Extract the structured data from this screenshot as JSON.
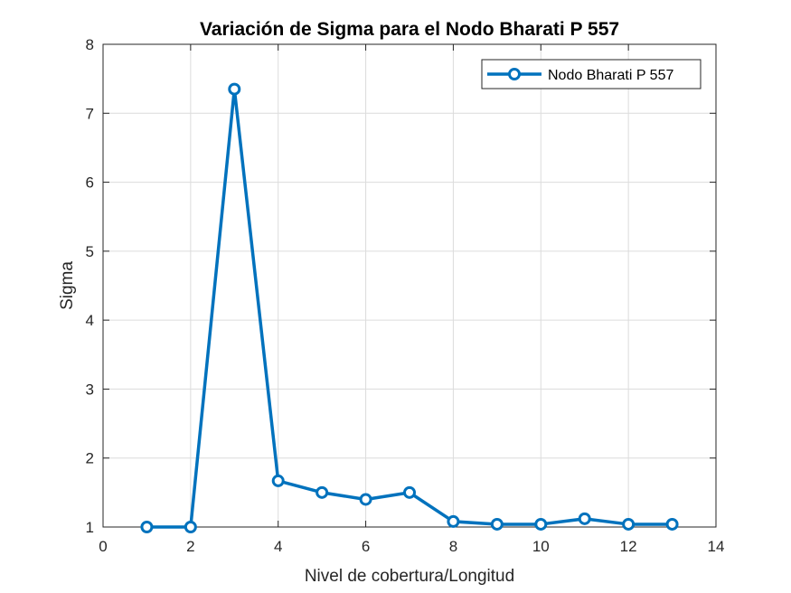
{
  "chart_data": {
    "type": "line",
    "title": "Variación de Sigma para el Nodo Bharati P 557",
    "xlabel": "Nivel de cobertura/Longitud",
    "ylabel": "Sigma",
    "xlim": [
      0,
      14
    ],
    "ylim": [
      1,
      8
    ],
    "xticks": [
      0,
      2,
      4,
      6,
      8,
      10,
      12,
      14
    ],
    "yticks": [
      1,
      2,
      3,
      4,
      5,
      6,
      7,
      8
    ],
    "grid": true,
    "legend_position": "top-right",
    "series": [
      {
        "name": "Nodo Bharati P 557",
        "color": "#0072BD",
        "marker": "circle",
        "x": [
          1,
          2,
          3,
          4,
          5,
          6,
          7,
          8,
          9,
          10,
          11,
          12,
          13
        ],
        "y": [
          1.0,
          1.0,
          7.35,
          1.67,
          1.5,
          1.4,
          1.5,
          1.08,
          1.04,
          1.04,
          1.12,
          1.04,
          1.04
        ]
      }
    ]
  }
}
